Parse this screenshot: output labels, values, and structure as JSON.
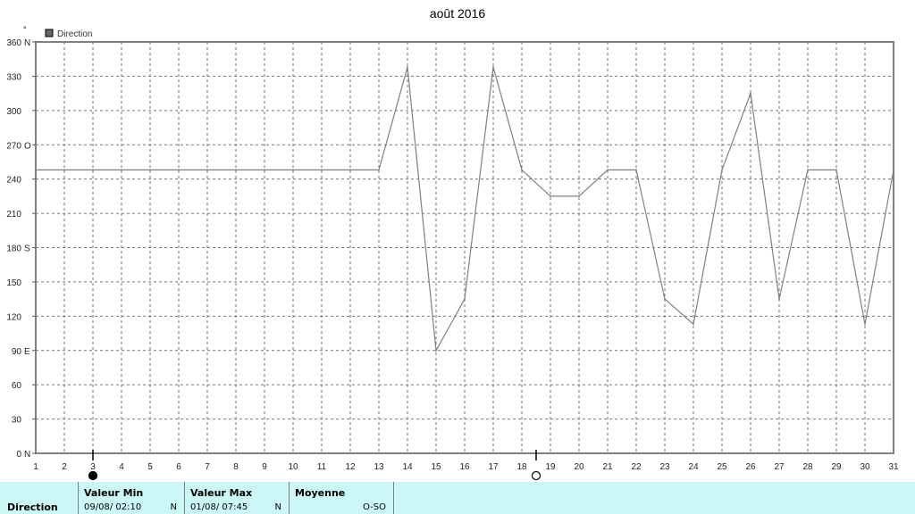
{
  "chart_data": {
    "type": "line",
    "title": "août 2016",
    "unit_marker": "°",
    "legend": [
      {
        "label": "Direction",
        "color": "#666666"
      }
    ],
    "legend_position": "top-left",
    "grid": true,
    "ylim": [
      0,
      360
    ],
    "yticks": [
      {
        "v": 0,
        "label": "0",
        "dir": "N"
      },
      {
        "v": 30,
        "label": "30",
        "dir": ""
      },
      {
        "v": 60,
        "label": "60",
        "dir": ""
      },
      {
        "v": 90,
        "label": "90",
        "dir": "E"
      },
      {
        "v": 120,
        "label": "120",
        "dir": ""
      },
      {
        "v": 150,
        "label": "150",
        "dir": ""
      },
      {
        "v": 180,
        "label": "180",
        "dir": "S"
      },
      {
        "v": 210,
        "label": "210",
        "dir": ""
      },
      {
        "v": 240,
        "label": "240",
        "dir": ""
      },
      {
        "v": 270,
        "label": "270",
        "dir": "O"
      },
      {
        "v": 300,
        "label": "300",
        "dir": ""
      },
      {
        "v": 330,
        "label": "330",
        "dir": ""
      },
      {
        "v": 360,
        "label": "360",
        "dir": "N"
      }
    ],
    "xlim": [
      1,
      31
    ],
    "x": [
      1,
      2,
      3,
      4,
      5,
      6,
      7,
      8,
      9,
      10,
      11,
      12,
      13,
      14,
      15,
      16,
      17,
      18,
      19,
      20,
      21,
      22,
      23,
      24,
      25,
      26,
      27,
      28,
      29,
      30,
      31
    ],
    "series": [
      {
        "name": "Direction",
        "color": "#808080",
        "values": [
          248,
          248,
          248,
          248,
          248,
          248,
          248,
          248,
          248,
          248,
          248,
          248,
          248,
          338,
          90,
          135,
          338,
          248,
          225,
          225,
          248,
          248,
          135,
          113,
          248,
          315,
          135,
          248,
          248,
          113,
          248
        ]
      }
    ],
    "moon_phases": [
      {
        "day": 3,
        "phase": "new-moon"
      },
      {
        "day": 18.5,
        "phase": "full-moon"
      }
    ]
  },
  "stats": {
    "row_label": "Direction",
    "min": {
      "header": "Valeur Min",
      "date": "09/08/  02:10",
      "value": "N"
    },
    "max": {
      "header": "Valeur Max",
      "date": "01/08/  07:45",
      "value": "N"
    },
    "avg": {
      "header": "Moyenne",
      "value": "O-SO"
    }
  }
}
